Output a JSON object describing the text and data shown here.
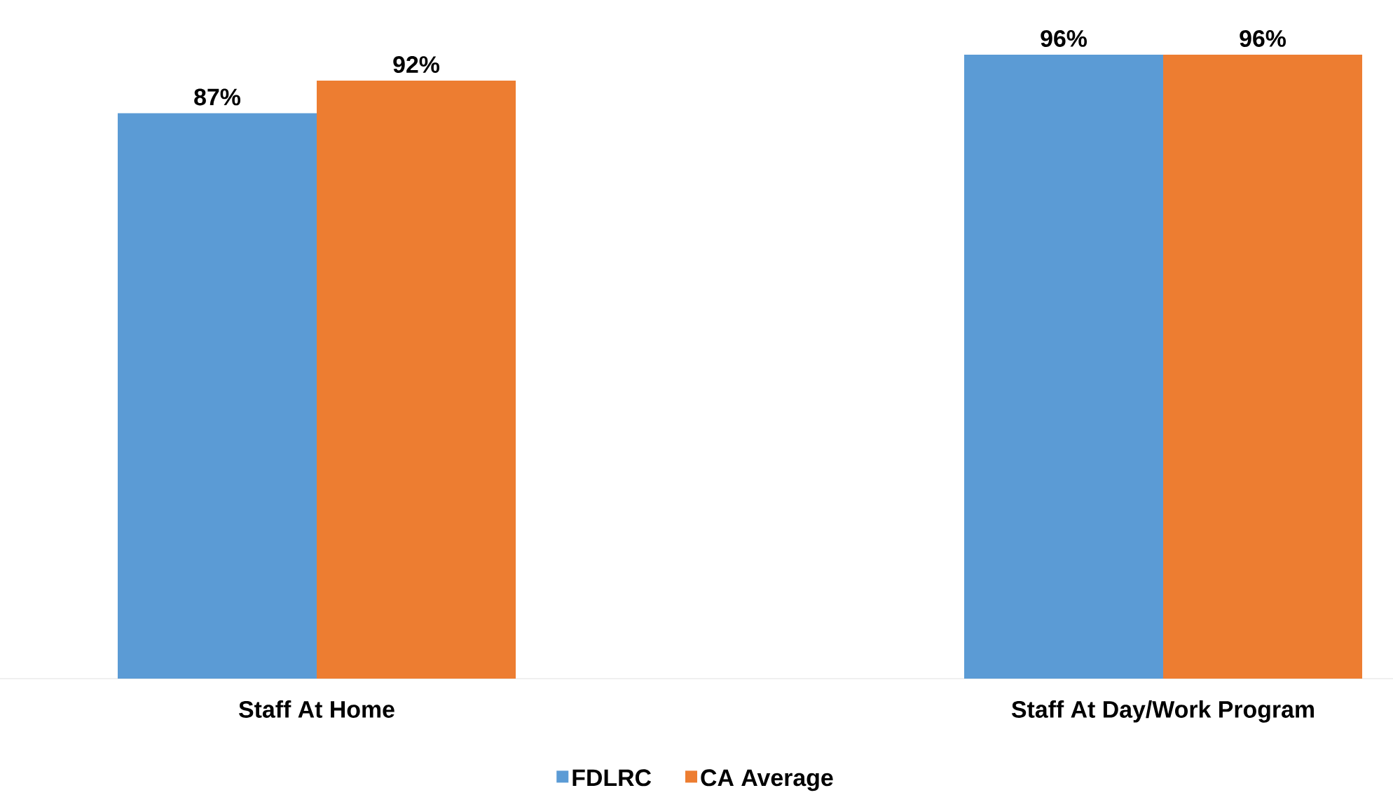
{
  "chart_data": {
    "type": "bar",
    "categories": [
      "Staff At Home",
      "Staff At Day/Work Program"
    ],
    "series": [
      {
        "name": "FDLRC",
        "color": "#5b9bd5",
        "values": [
          87,
          96
        ],
        "value_labels": [
          "87%",
          "96%"
        ]
      },
      {
        "name": "CA Average",
        "color": "#ed7d31",
        "values": [
          92,
          96
        ],
        "value_labels": [
          "92%",
          "96%"
        ]
      }
    ],
    "legend": "bottom"
  }
}
